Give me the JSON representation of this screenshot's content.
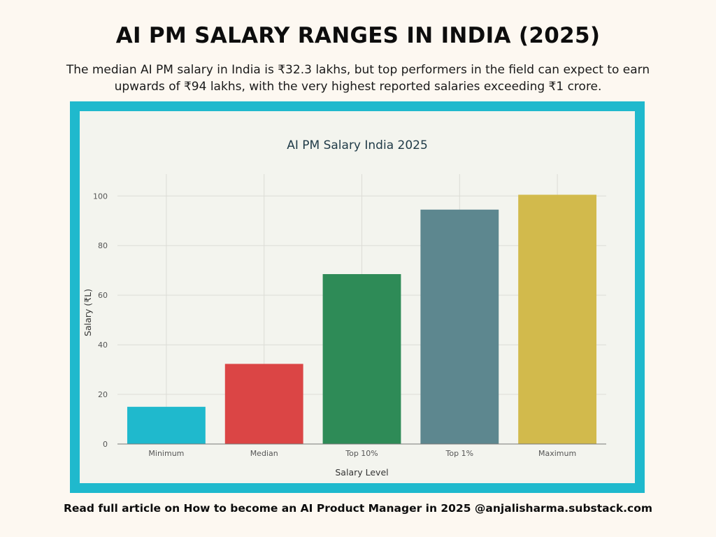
{
  "header": {
    "title": "AI PM SALARY RANGES IN INDIA (2025)",
    "subtitle": "The median AI PM salary in India is ₹32.3 lakhs, but top performers in the field can expect to earn upwards of ₹94 lakhs, with the very highest reported salaries exceeding ₹1 crore."
  },
  "footer": {
    "text": "Read full article on How to become an AI Product Manager in 2025 @anjalisharma.substack.com"
  },
  "colors": {
    "frame": "#1fb9cd",
    "panel": "#f3f4ee",
    "grid": "#dcdcd6"
  },
  "chart_data": {
    "type": "bar",
    "title": "AI PM Salary India 2025",
    "xlabel": "Salary Level",
    "ylabel": "Salary (₹L)",
    "categories": [
      "Minimum",
      "Median",
      "Top 10%",
      "Top 1%",
      "Maximum"
    ],
    "values": [
      15,
      32.3,
      68.5,
      94.5,
      100.5
    ],
    "colors": [
      "#1fb9cd",
      "#db4545",
      "#2e8b57",
      "#5d878f",
      "#d2ba4c"
    ],
    "yticks": [
      0,
      20,
      40,
      60,
      80,
      100
    ],
    "ylim": [
      0,
      106
    ],
    "grid": true
  }
}
